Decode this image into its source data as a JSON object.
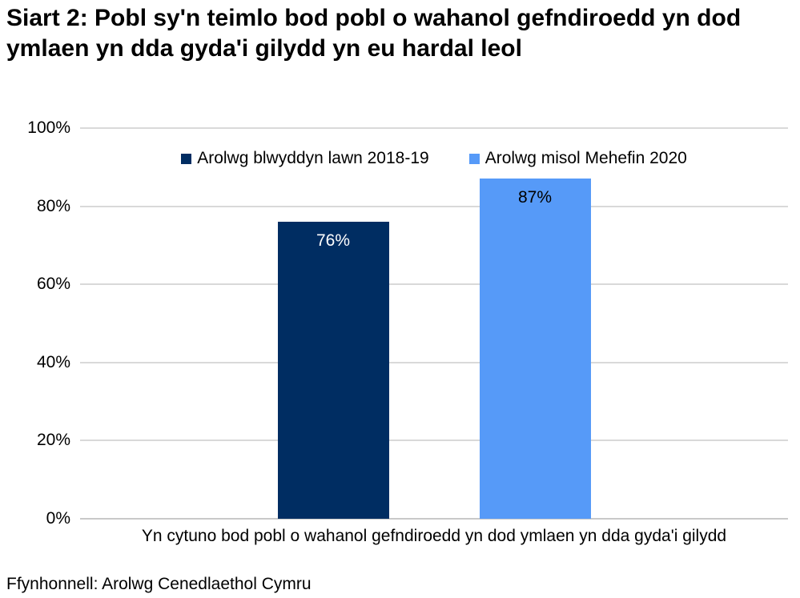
{
  "title": "Siart 2: Pobl sy'n teimlo bod pobl o wahanol gefndiroedd yn dod ymlaen yn dda gyda'i gilydd yn eu hardal leol",
  "source": "Ffynhonnell: Arolwg Cenedlaethol Cymru",
  "chart_data": {
    "type": "bar",
    "categories": [
      "Yn cytuno bod pobl o wahanol gefndiroedd yn dod ymlaen yn dda gyda'i gilydd"
    ],
    "series": [
      {
        "name": "Arolwg blwyddyn lawn 2018-19",
        "values": [
          76
        ],
        "color": "#002d62",
        "value_label": "76%",
        "value_label_color": "#ffffff"
      },
      {
        "name": "Arolwg misol Mehefin 2020",
        "values": [
          87
        ],
        "color": "#569af8",
        "value_label": "87%",
        "value_label_color": "#000000"
      }
    ],
    "xlabel": "Yn cytuno bod pobl o wahanol gefndiroedd yn dod ymlaen yn dda gyda'i gilydd",
    "ylabel": "",
    "ylim": [
      0,
      100
    ],
    "yticks": [
      0,
      20,
      40,
      60,
      80,
      100
    ],
    "ytick_labels": [
      "0%",
      "20%",
      "40%",
      "60%",
      "80%",
      "100%"
    ],
    "grid": true,
    "legend_position": "top-center-inside",
    "gridline_color": "#d9d9d9",
    "axis_line_color": "#c9c9c9"
  }
}
